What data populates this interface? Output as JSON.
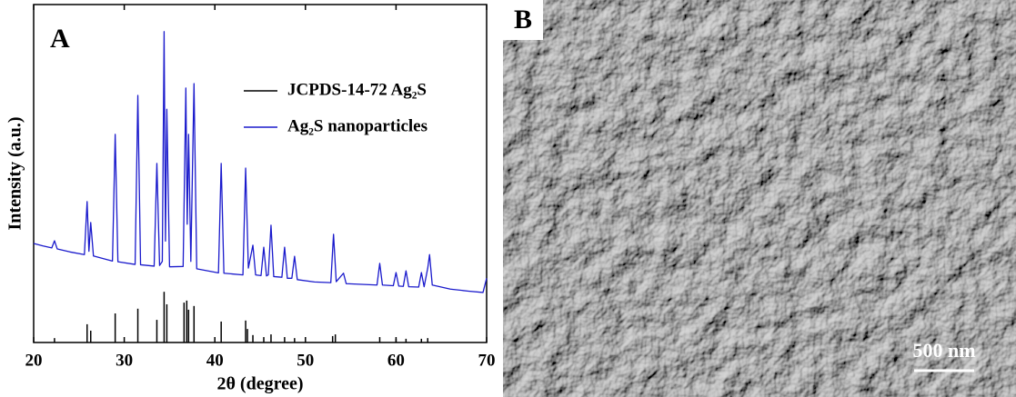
{
  "chart_data": {
    "type": "line",
    "panel_label": "A",
    "x_label": "2θ (degree)",
    "y_label": "Intensity (a.u.)",
    "xlim": [
      20,
      70
    ],
    "xticks": [
      20,
      30,
      40,
      50,
      60,
      70
    ],
    "ylim": [
      0,
      100
    ],
    "legend": "upper right",
    "series": [
      {
        "name": "JCPDS-14-72 Ag₂S",
        "color": "#000000",
        "style": "stick",
        "x": [
          22.3,
          25.9,
          26.3,
          29.0,
          31.5,
          33.6,
          34.4,
          34.7,
          36.6,
          36.9,
          37.1,
          37.7,
          40.7,
          43.4,
          43.6,
          44.2,
          45.4,
          46.2,
          47.7,
          48.8,
          53.0,
          53.3,
          58.2,
          60.0,
          61.1,
          62.8,
          63.5
        ],
        "values": [
          1.3,
          5.4,
          3.5,
          8.6,
          10,
          6.7,
          15,
          11.3,
          11.8,
          12.4,
          9.7,
          10.8,
          6.2,
          6.5,
          4,
          2.2,
          1.6,
          2.4,
          1.6,
          1.3,
          1.9,
          2.4,
          1.6,
          1.1,
          1.1,
          1.1,
          1.3
        ]
      },
      {
        "name": "Ag₂S nanoparticles",
        "color": "#1a1acc",
        "style": "line",
        "x": [
          20,
          21,
          22,
          22.3,
          22.6,
          24,
          25.6,
          25.9,
          26.1,
          26.3,
          26.6,
          28.7,
          29.0,
          29.3,
          31.2,
          31.5,
          31.8,
          33.3,
          33.6,
          33.9,
          34.2,
          34.4,
          34.55,
          34.7,
          35.0,
          36.5,
          36.8,
          36.95,
          37.1,
          37.35,
          37.7,
          38.0,
          40.4,
          40.7,
          41.0,
          43.1,
          43.4,
          43.7,
          44.2,
          44.5,
          45.1,
          45.4,
          45.7,
          45.9,
          46.2,
          46.5,
          47.4,
          47.7,
          48.0,
          48.5,
          48.8,
          49.1,
          51,
          52.8,
          53.1,
          53.4,
          54.2,
          54.5,
          57.9,
          58.2,
          58.5,
          59.7,
          60.0,
          60.3,
          60.8,
          61.1,
          61.4,
          62.5,
          62.8,
          63.1,
          63.5,
          63.7,
          64.0,
          66,
          68,
          69.6,
          70
        ],
        "values": [
          29.3,
          28.6,
          28,
          30.1,
          27.7,
          26.8,
          26,
          41.7,
          27,
          35.5,
          25.6,
          24.1,
          61.6,
          23.9,
          23.1,
          73.1,
          23,
          22.6,
          53,
          22.8,
          24,
          92,
          30,
          69,
          22.4,
          22.5,
          75.3,
          35,
          61.6,
          24,
          76.6,
          21.8,
          20.6,
          53,
          20.5,
          20,
          51.6,
          22,
          28.8,
          20,
          19.8,
          28.2,
          19.7,
          20,
          34.7,
          19.5,
          19.3,
          28.2,
          19,
          19,
          25.5,
          18.6,
          17.9,
          17.7,
          32,
          18,
          20.5,
          17.4,
          17,
          23.4,
          17,
          16.8,
          20.7,
          16.7,
          16.6,
          21.2,
          16.5,
          16.4,
          20.7,
          16.5,
          22,
          26,
          17,
          15.8,
          15.2,
          14.8,
          19
        ]
      }
    ]
  },
  "panel_b": {
    "label": "B",
    "scale_bar": "500 nm"
  }
}
